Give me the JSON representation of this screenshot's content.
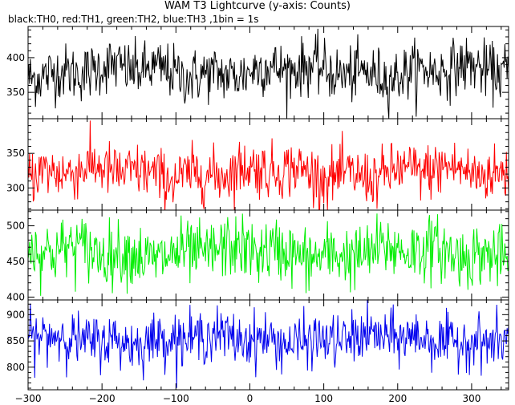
{
  "title": "WAM T3 Lightcurve (y-axis: Counts)",
  "subtitle": "black:TH0, red:TH1, green:TH2, blue:TH3 ,1bin = 1s",
  "chart_data": {
    "type": "line",
    "xlim": [
      -300,
      350
    ],
    "x_ticks": [
      -300,
      -200,
      -100,
      0,
      100,
      200,
      300
    ],
    "x_tick_labels": [
      "−300",
      "−200",
      "−100",
      "0",
      "100",
      "200",
      "300"
    ],
    "bin_seconds": 1,
    "grid": false,
    "legend": "none (colour key given in subtitle)",
    "panels": [
      {
        "name": "TH0",
        "color": "#000000",
        "ylim": [
          312,
          445
        ],
        "y_ticks": [
          350,
          400
        ],
        "y_tick_labels": [
          "350",
          "400"
        ],
        "mean": 380,
        "noise_sd": 20
      },
      {
        "name": "TH1",
        "color": "#ff0000",
        "ylim": [
          268,
          400
        ],
        "y_ticks": [
          300,
          350
        ],
        "y_tick_labels": [
          "300",
          "350"
        ],
        "mean": 322,
        "noise_sd": 20
      },
      {
        "name": "TH2",
        "color": "#00ee00",
        "ylim": [
          396,
          522
        ],
        "y_ticks": [
          400,
          450,
          500
        ],
        "y_tick_labels": [
          "400",
          "450",
          "500"
        ],
        "mean": 462,
        "noise_sd": 22
      },
      {
        "name": "TH3",
        "color": "#0000ee",
        "ylim": [
          757,
          928
        ],
        "y_ticks": [
          800,
          850,
          900
        ],
        "y_tick_labels": [
          "800",
          "850",
          "900"
        ],
        "mean": 853,
        "noise_sd": 25
      }
    ]
  }
}
